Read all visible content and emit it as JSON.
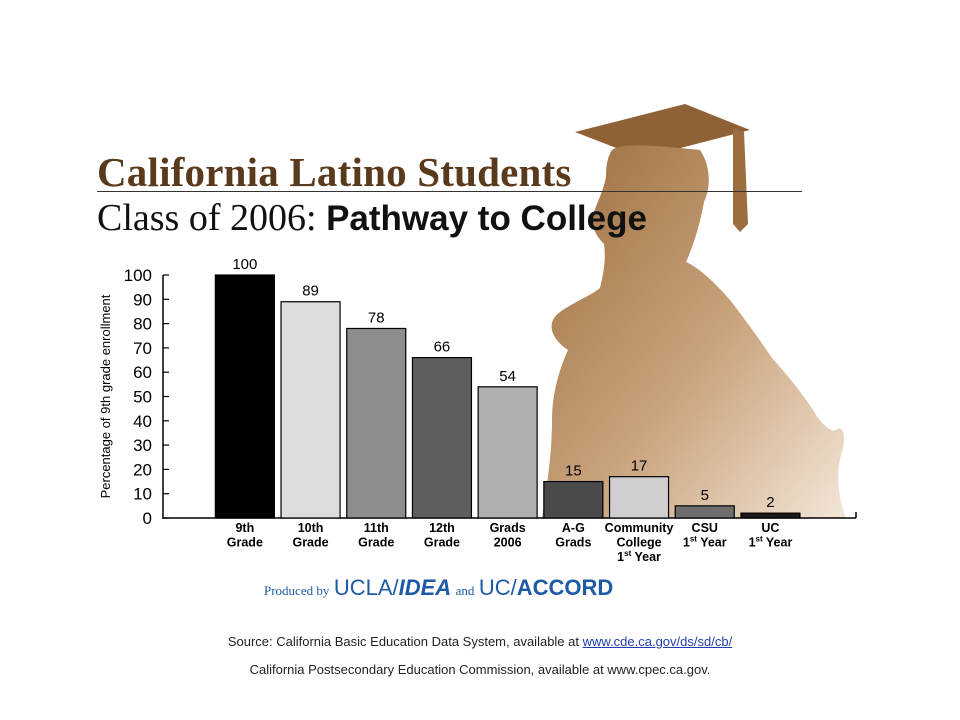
{
  "title": {
    "line1": "California Latino Students",
    "line2_prefix": "Class of 2006: ",
    "line2_bold": "Pathway to College"
  },
  "decoration": {
    "icon": "graduate-silhouette-icon",
    "color": "#a57a4e"
  },
  "chart_data": {
    "type": "bar",
    "ylabel": "Percentage of 9th grade enrollment",
    "ylim": [
      0,
      100
    ],
    "yticks": [
      0,
      10,
      20,
      30,
      40,
      50,
      60,
      70,
      80,
      90,
      100
    ],
    "grid": false,
    "categories": [
      {
        "lines": [
          "9th",
          "Grade"
        ]
      },
      {
        "lines": [
          "10th",
          "Grade"
        ]
      },
      {
        "lines": [
          "11th",
          "Grade"
        ]
      },
      {
        "lines": [
          "12th",
          "Grade"
        ]
      },
      {
        "lines": [
          "Grads",
          "2006"
        ]
      },
      {
        "lines": [
          "A-G",
          "Grads"
        ]
      },
      {
        "lines": [
          "Community",
          "College",
          "1st Year"
        ]
      },
      {
        "lines": [
          "CSU",
          "1st Year"
        ]
      },
      {
        "lines": [
          "UC",
          "1st Year"
        ]
      }
    ],
    "values": [
      100,
      89,
      78,
      66,
      54,
      15,
      17,
      5,
      2
    ],
    "bar_colors": [
      "#000000",
      "#dcdcdc",
      "#8e8e8e",
      "#5e5e5e",
      "#b0b0b0",
      "#4a4a4a",
      "#cfcfcf",
      "#6e6e6e",
      "#1a1a1a"
    ]
  },
  "credit": {
    "produced_by": "Produced by",
    "ucla": "UCLA/",
    "idea": "IDEA",
    "and": "and",
    "uc": "UC/",
    "accord": "ACCORD"
  },
  "source": {
    "line1_prefix": "Source:  California Basic Education Data System, available at ",
    "line1_link": "www.cde.ca.gov/ds/sd/cb/",
    "line2": "California Postsecondary Education Commission, available at www.cpec.ca.gov."
  },
  "colors": {
    "title_brown": "#5a3a1c",
    "silhouette": "#a57a4e",
    "credit_blue": "#1f5aa6",
    "link_blue": "#1f3fb0"
  }
}
